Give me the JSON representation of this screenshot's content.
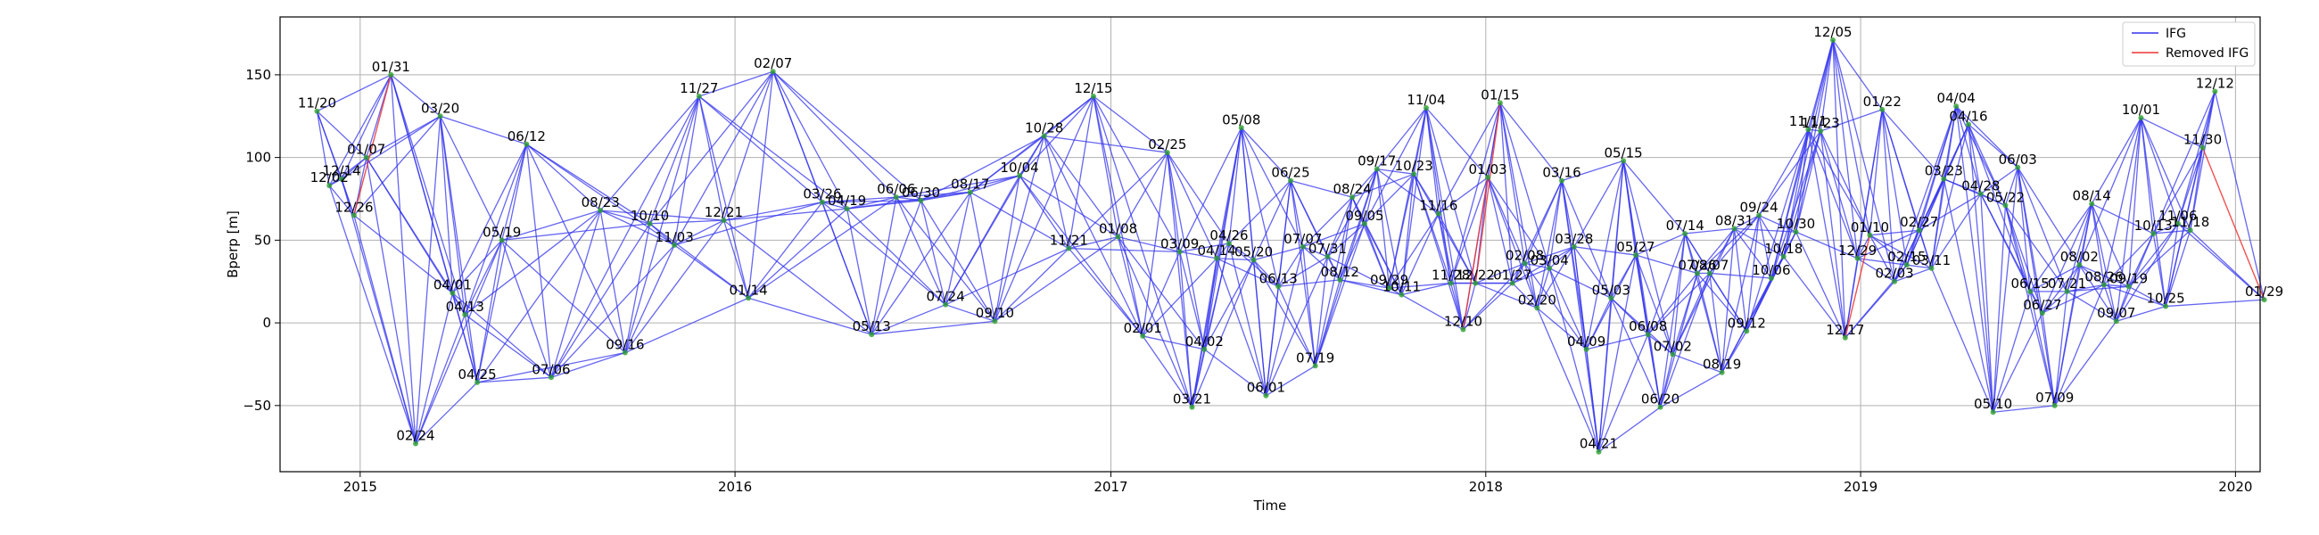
{
  "chart_data": {
    "type": "line",
    "xlabel": "Time",
    "ylabel": "Bperp [m]",
    "xlim": [
      "2014-10-15",
      "2020-01-25"
    ],
    "ylim": [
      -90,
      185
    ],
    "yticks": [
      -50,
      0,
      50,
      100,
      150
    ],
    "xticks": [
      {
        "date": "2015-01-01",
        "label": "2015"
      },
      {
        "date": "2016-01-01",
        "label": "2016"
      },
      {
        "date": "2017-01-01",
        "label": "2017"
      },
      {
        "date": "2018-01-01",
        "label": "2018"
      },
      {
        "date": "2019-01-01",
        "label": "2019"
      },
      {
        "date": "2020-01-01",
        "label": "2020"
      }
    ],
    "grid": true,
    "legend": {
      "placement": "top-right",
      "entries": [
        {
          "label": "IFG",
          "color": "#3333ee"
        },
        {
          "label": "Removed IFG",
          "color": "#ee3333"
        }
      ]
    },
    "nodes": [
      {
        "label": "11/20",
        "date": "2014-11-20",
        "bperp": 128
      },
      {
        "label": "12/02",
        "date": "2014-12-02",
        "bperp": 83
      },
      {
        "label": "12/14",
        "date": "2014-12-14",
        "bperp": 87
      },
      {
        "label": "12/26",
        "date": "2014-12-26",
        "bperp": 65
      },
      {
        "label": "01/07",
        "date": "2015-01-07",
        "bperp": 100
      },
      {
        "label": "01/31",
        "date": "2015-01-31",
        "bperp": 150
      },
      {
        "label": "02/24",
        "date": "2015-02-24",
        "bperp": -73
      },
      {
        "label": "03/20",
        "date": "2015-03-20",
        "bperp": 125
      },
      {
        "label": "04/01",
        "date": "2015-04-01",
        "bperp": 18
      },
      {
        "label": "04/13",
        "date": "2015-04-13",
        "bperp": 5
      },
      {
        "label": "04/25",
        "date": "2015-04-25",
        "bperp": -36
      },
      {
        "label": "05/19",
        "date": "2015-05-19",
        "bperp": 50
      },
      {
        "label": "06/12",
        "date": "2015-06-12",
        "bperp": 108
      },
      {
        "label": "07/06",
        "date": "2015-07-06",
        "bperp": -33
      },
      {
        "label": "08/23",
        "date": "2015-08-23",
        "bperp": 68
      },
      {
        "label": "09/16",
        "date": "2015-09-16",
        "bperp": -18
      },
      {
        "label": "10/10",
        "date": "2015-10-10",
        "bperp": 60
      },
      {
        "label": "11/03",
        "date": "2015-11-03",
        "bperp": 47
      },
      {
        "label": "11/27",
        "date": "2015-11-27",
        "bperp": 137
      },
      {
        "label": "12/21",
        "date": "2015-12-21",
        "bperp": 62
      },
      {
        "label": "01/14",
        "date": "2016-01-14",
        "bperp": 15
      },
      {
        "label": "02/07",
        "date": "2016-02-07",
        "bperp": 152
      },
      {
        "label": "03/26",
        "date": "2016-03-26",
        "bperp": 73
      },
      {
        "label": "04/19",
        "date": "2016-04-19",
        "bperp": 69
      },
      {
        "label": "05/13",
        "date": "2016-05-13",
        "bperp": -7
      },
      {
        "label": "06/06",
        "date": "2016-06-06",
        "bperp": 76
      },
      {
        "label": "06/30",
        "date": "2016-06-30",
        "bperp": 74
      },
      {
        "label": "07/24",
        "date": "2016-07-24",
        "bperp": 11
      },
      {
        "label": "08/17",
        "date": "2016-08-17",
        "bperp": 79
      },
      {
        "label": "09/10",
        "date": "2016-09-10",
        "bperp": 1
      },
      {
        "label": "10/04",
        "date": "2016-10-04",
        "bperp": 89
      },
      {
        "label": "10/28",
        "date": "2016-10-28",
        "bperp": 113
      },
      {
        "label": "11/21",
        "date": "2016-11-21",
        "bperp": 45
      },
      {
        "label": "12/15",
        "date": "2016-12-15",
        "bperp": 137
      },
      {
        "label": "01/08",
        "date": "2017-01-08",
        "bperp": 52
      },
      {
        "label": "02/01",
        "date": "2017-02-01",
        "bperp": -8
      },
      {
        "label": "02/25",
        "date": "2017-02-25",
        "bperp": 103
      },
      {
        "label": "03/09",
        "date": "2017-03-09",
        "bperp": 43
      },
      {
        "label": "03/21",
        "date": "2017-03-21",
        "bperp": -51
      },
      {
        "label": "04/02",
        "date": "2017-04-02",
        "bperp": -16
      },
      {
        "label": "04/14",
        "date": "2017-04-14",
        "bperp": 39
      },
      {
        "label": "04/26",
        "date": "2017-04-26",
        "bperp": 48
      },
      {
        "label": "05/08",
        "date": "2017-05-08",
        "bperp": 118
      },
      {
        "label": "05/20",
        "date": "2017-05-20",
        "bperp": 38
      },
      {
        "label": "06/01",
        "date": "2017-06-01",
        "bperp": -44
      },
      {
        "label": "06/13",
        "date": "2017-06-13",
        "bperp": 22
      },
      {
        "label": "06/25",
        "date": "2017-06-25",
        "bperp": 86
      },
      {
        "label": "07/07",
        "date": "2017-07-07",
        "bperp": 46
      },
      {
        "label": "07/19",
        "date": "2017-07-19",
        "bperp": -26
      },
      {
        "label": "07/31",
        "date": "2017-07-31",
        "bperp": 40
      },
      {
        "label": "08/12",
        "date": "2017-08-12",
        "bperp": 26
      },
      {
        "label": "08/24",
        "date": "2017-08-24",
        "bperp": 76
      },
      {
        "label": "09/05",
        "date": "2017-09-05",
        "bperp": 60
      },
      {
        "label": "09/17",
        "date": "2017-09-17",
        "bperp": 93
      },
      {
        "label": "09/29",
        "date": "2017-09-29",
        "bperp": 21
      },
      {
        "label": "10/11",
        "date": "2017-10-11",
        "bperp": 17
      },
      {
        "label": "10/23",
        "date": "2017-10-23",
        "bperp": 90
      },
      {
        "label": "11/04",
        "date": "2017-11-04",
        "bperp": 130
      },
      {
        "label": "11/16",
        "date": "2017-11-16",
        "bperp": 66
      },
      {
        "label": "11/28",
        "date": "2017-11-28",
        "bperp": 24
      },
      {
        "label": "12/10",
        "date": "2017-12-10",
        "bperp": -4
      },
      {
        "label": "12/22",
        "date": "2017-12-22",
        "bperp": 24
      },
      {
        "label": "01/03",
        "date": "2018-01-03",
        "bperp": 88
      },
      {
        "label": "01/15",
        "date": "2018-01-15",
        "bperp": 133
      },
      {
        "label": "01/27",
        "date": "2018-01-27",
        "bperp": 24
      },
      {
        "label": "02/08",
        "date": "2018-02-08",
        "bperp": 36
      },
      {
        "label": "02/20",
        "date": "2018-02-20",
        "bperp": 9
      },
      {
        "label": "03/04",
        "date": "2018-03-04",
        "bperp": 33
      },
      {
        "label": "03/16",
        "date": "2018-03-16",
        "bperp": 86
      },
      {
        "label": "03/28",
        "date": "2018-03-28",
        "bperp": 46
      },
      {
        "label": "04/09",
        "date": "2018-04-09",
        "bperp": -16
      },
      {
        "label": "04/21",
        "date": "2018-04-21",
        "bperp": -78
      },
      {
        "label": "05/03",
        "date": "2018-05-03",
        "bperp": 15
      },
      {
        "label": "05/15",
        "date": "2018-05-15",
        "bperp": 98
      },
      {
        "label": "05/27",
        "date": "2018-05-27",
        "bperp": 41
      },
      {
        "label": "06/08",
        "date": "2018-06-08",
        "bperp": -7
      },
      {
        "label": "06/20",
        "date": "2018-06-20",
        "bperp": -51
      },
      {
        "label": "07/02",
        "date": "2018-07-02",
        "bperp": -19
      },
      {
        "label": "07/14",
        "date": "2018-07-14",
        "bperp": 54
      },
      {
        "label": "07/26",
        "date": "2018-07-26",
        "bperp": 30
      },
      {
        "label": "08/07",
        "date": "2018-08-07",
        "bperp": 30
      },
      {
        "label": "08/19",
        "date": "2018-08-19",
        "bperp": -30
      },
      {
        "label": "08/31",
        "date": "2018-08-31",
        "bperp": 57
      },
      {
        "label": "09/12",
        "date": "2018-09-12",
        "bperp": -5
      },
      {
        "label": "09/24",
        "date": "2018-09-24",
        "bperp": 65
      },
      {
        "label": "10/06",
        "date": "2018-10-06",
        "bperp": 27
      },
      {
        "label": "10/18",
        "date": "2018-10-18",
        "bperp": 40
      },
      {
        "label": "10/30",
        "date": "2018-10-30",
        "bperp": 55
      },
      {
        "label": "11/11",
        "date": "2018-11-11",
        "bperp": 117
      },
      {
        "label": "11/23",
        "date": "2018-11-23",
        "bperp": 116
      },
      {
        "label": "12/05",
        "date": "2018-12-05",
        "bperp": 171
      },
      {
        "label": "12/17",
        "date": "2018-12-17",
        "bperp": -9
      },
      {
        "label": "12/29",
        "date": "2018-12-29",
        "bperp": 39
      },
      {
        "label": "01/10",
        "date": "2019-01-10",
        "bperp": 53
      },
      {
        "label": "01/22",
        "date": "2019-01-22",
        "bperp": 129
      },
      {
        "label": "02/03",
        "date": "2019-02-03",
        "bperp": 25
      },
      {
        "label": "02/15",
        "date": "2019-02-15",
        "bperp": 35
      },
      {
        "label": "02/27",
        "date": "2019-02-27",
        "bperp": 56
      },
      {
        "label": "03/11",
        "date": "2019-03-11",
        "bperp": 33
      },
      {
        "label": "03/23",
        "date": "2019-03-23",
        "bperp": 87
      },
      {
        "label": "04/04",
        "date": "2019-04-04",
        "bperp": 131
      },
      {
        "label": "04/16",
        "date": "2019-04-16",
        "bperp": 120
      },
      {
        "label": "04/28",
        "date": "2019-04-28",
        "bperp": 78
      },
      {
        "label": "05/10",
        "date": "2019-05-10",
        "bperp": -54
      },
      {
        "label": "05/22",
        "date": "2019-05-22",
        "bperp": 71
      },
      {
        "label": "06/03",
        "date": "2019-06-03",
        "bperp": 94
      },
      {
        "label": "06/15",
        "date": "2019-06-15",
        "bperp": 19
      },
      {
        "label": "06/27",
        "date": "2019-06-27",
        "bperp": 6
      },
      {
        "label": "07/09",
        "date": "2019-07-09",
        "bperp": -50
      },
      {
        "label": "07/21",
        "date": "2019-07-21",
        "bperp": 19
      },
      {
        "label": "08/02",
        "date": "2019-08-02",
        "bperp": 35
      },
      {
        "label": "08/14",
        "date": "2019-08-14",
        "bperp": 72
      },
      {
        "label": "08/26",
        "date": "2019-08-26",
        "bperp": 23
      },
      {
        "label": "09/07",
        "date": "2019-09-07",
        "bperp": 1
      },
      {
        "label": "09/19",
        "date": "2019-09-19",
        "bperp": 22
      },
      {
        "label": "10/01",
        "date": "2019-10-01",
        "bperp": 124
      },
      {
        "label": "10/13",
        "date": "2019-10-13",
        "bperp": 54
      },
      {
        "label": "10/25",
        "date": "2019-10-25",
        "bperp": 10
      },
      {
        "label": "11/06",
        "date": "2019-11-06",
        "bperp": 60
      },
      {
        "label": "11/18",
        "date": "2019-11-18",
        "bperp": 56
      },
      {
        "label": "11/30",
        "date": "2019-11-30",
        "bperp": 106
      },
      {
        "label": "12/12",
        "date": "2019-12-12",
        "bperp": 140
      },
      {
        "label": "01/29",
        "date": "2020-01-29",
        "bperp": 14
      }
    ],
    "removed_edges": [
      [
        "12/26",
        "01/31"
      ],
      [
        "12/10",
        "01/03"
      ],
      [
        "12/22",
        "01/15"
      ],
      [
        "12/17",
        "01/10"
      ],
      [
        "11/30",
        "01/29"
      ]
    ]
  }
}
